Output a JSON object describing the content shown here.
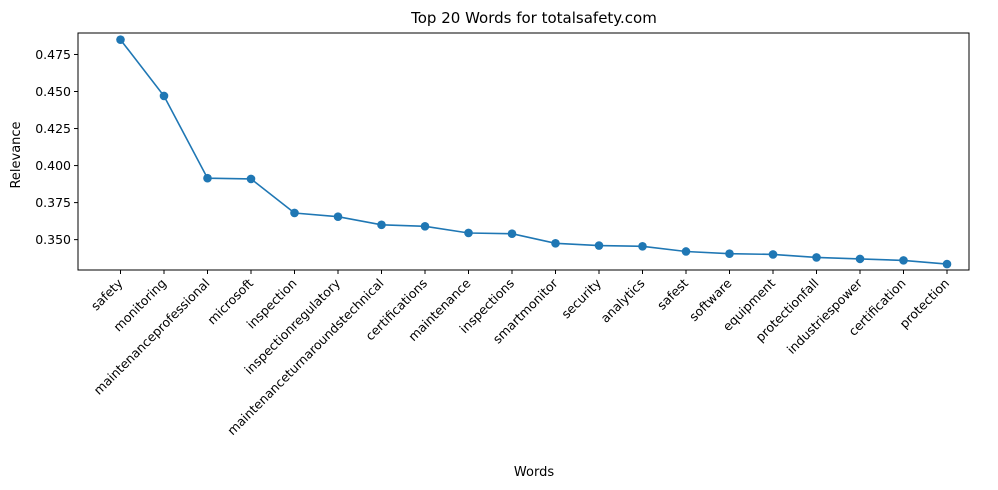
{
  "chart_data": {
    "type": "line",
    "title": "Top 20 Words for totalsafety.com",
    "xlabel": "Words",
    "ylabel": "Relevance",
    "categories": [
      "safety",
      "monitoring",
      "maintenanceprofessional",
      "microsoft",
      "inspection",
      "inspectionregulatory",
      "maintenanceturnaroundstechnical",
      "certifications",
      "maintenance",
      "inspections",
      "smartmonitor",
      "security",
      "analytics",
      "safest",
      "software",
      "equipment",
      "protectionfall",
      "industriespower",
      "certification",
      "protection"
    ],
    "values": [
      0.485,
      0.447,
      0.3915,
      0.391,
      0.368,
      0.3655,
      0.36,
      0.359,
      0.3545,
      0.354,
      0.3475,
      0.346,
      0.3455,
      0.342,
      0.3405,
      0.34,
      0.338,
      0.337,
      0.336,
      0.3335
    ],
    "ylim": [
      0.3295,
      0.4895
    ],
    "yticks": [
      "0.350",
      "0.375",
      "0.400",
      "0.425",
      "0.450",
      "0.475"
    ],
    "grid": false,
    "marker": "circle",
    "color": "#1f77b4"
  }
}
